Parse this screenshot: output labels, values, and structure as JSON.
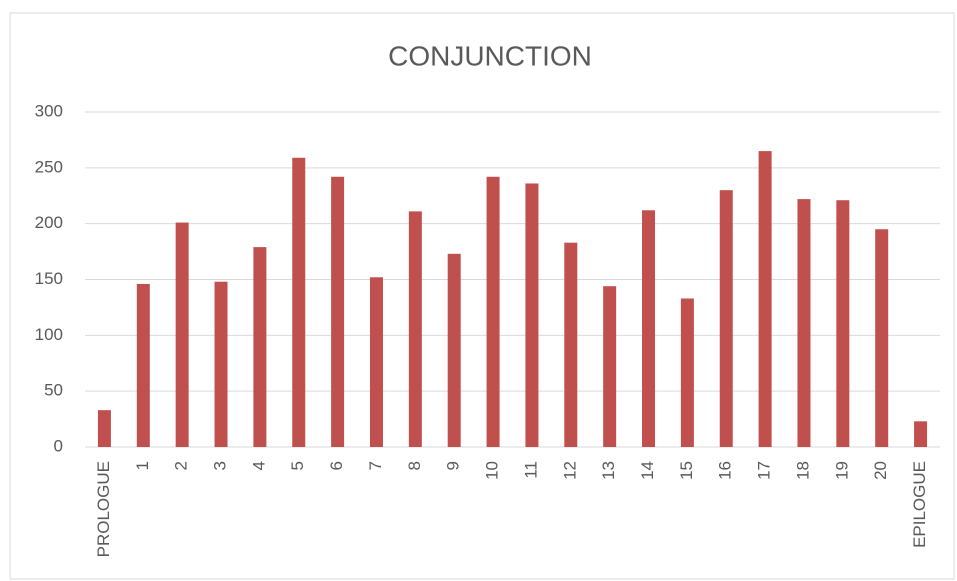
{
  "chart_data": {
    "type": "bar",
    "title": "CONJUNCTION",
    "categories": [
      "PROLOGUE",
      "1",
      "2",
      "3",
      "4",
      "5",
      "6",
      "7",
      "8",
      "9",
      "10",
      "11",
      "12",
      "13",
      "14",
      "15",
      "16",
      "17",
      "18",
      "19",
      "20",
      "EPILOGUE"
    ],
    "values": [
      33,
      146,
      201,
      148,
      179,
      259,
      242,
      152,
      211,
      173,
      242,
      236,
      183,
      144,
      212,
      133,
      230,
      265,
      222,
      221,
      195,
      23
    ],
    "color": "#c0504d",
    "ylim": [
      0,
      300
    ],
    "yticks": [
      0,
      50,
      100,
      150,
      200,
      250,
      300
    ],
    "grid": true
  }
}
